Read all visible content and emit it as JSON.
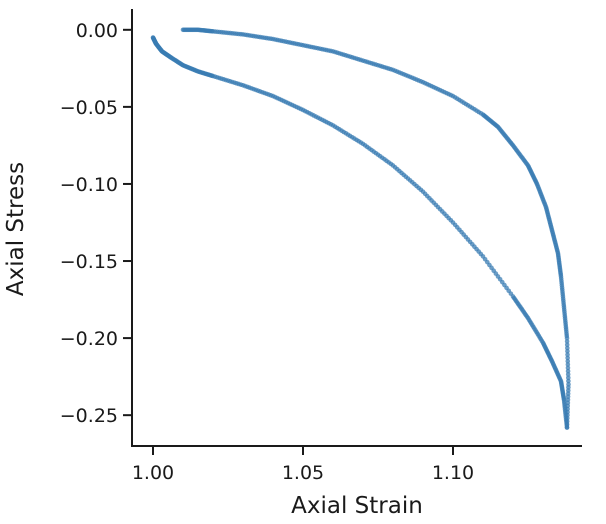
{
  "chart_data": {
    "type": "scatter",
    "title": "",
    "xlabel": "Axial Strain",
    "ylabel": "Axial Stress",
    "xlim": [
      0.993,
      1.143
    ],
    "ylim": [
      -0.27,
      0.0135
    ],
    "xticks": [
      1.0,
      1.05,
      1.1
    ],
    "xtick_labels": [
      "1.00",
      "1.05",
      "1.10"
    ],
    "yticks": [
      0.0,
      -0.05,
      -0.1,
      -0.15,
      -0.2,
      -0.25
    ],
    "ytick_labels": [
      "0.00",
      "−0.05",
      "−0.10",
      "−0.15",
      "−0.20",
      "−0.25"
    ],
    "grid": false,
    "marker_color": "#3a7cb3",
    "series": [
      {
        "x": [
          1.0,
          1.001,
          1.003,
          1.006,
          1.01,
          1.015,
          1.02,
          1.03,
          1.04,
          1.05,
          1.06,
          1.07,
          1.08,
          1.09,
          1.1,
          1.11,
          1.12,
          1.125,
          1.13,
          1.133,
          1.136,
          1.137,
          1.138
        ],
        "y": [
          -0.005,
          -0.009,
          -0.014,
          -0.018,
          -0.023,
          -0.027,
          -0.03,
          -0.036,
          -0.043,
          -0.052,
          -0.062,
          -0.074,
          -0.088,
          -0.105,
          -0.125,
          -0.147,
          -0.173,
          -0.187,
          -0.203,
          -0.215,
          -0.228,
          -0.24,
          -0.258
        ]
      },
      {
        "x": [
          1.138,
          1.1385,
          1.138,
          1.137,
          1.136,
          1.135,
          1.133,
          1.131,
          1.128,
          1.125,
          1.12,
          1.115,
          1.11,
          1.1,
          1.09,
          1.08,
          1.07,
          1.06,
          1.05,
          1.04,
          1.03,
          1.02,
          1.015,
          1.01
        ],
        "y": [
          -0.258,
          -0.23,
          -0.2,
          -0.18,
          -0.16,
          -0.145,
          -0.13,
          -0.115,
          -0.1,
          -0.088,
          -0.075,
          -0.063,
          -0.055,
          -0.043,
          -0.034,
          -0.026,
          -0.02,
          -0.014,
          -0.01,
          -0.006,
          -0.003,
          -0.001,
          0.0,
          0.0
        ]
      }
    ]
  }
}
